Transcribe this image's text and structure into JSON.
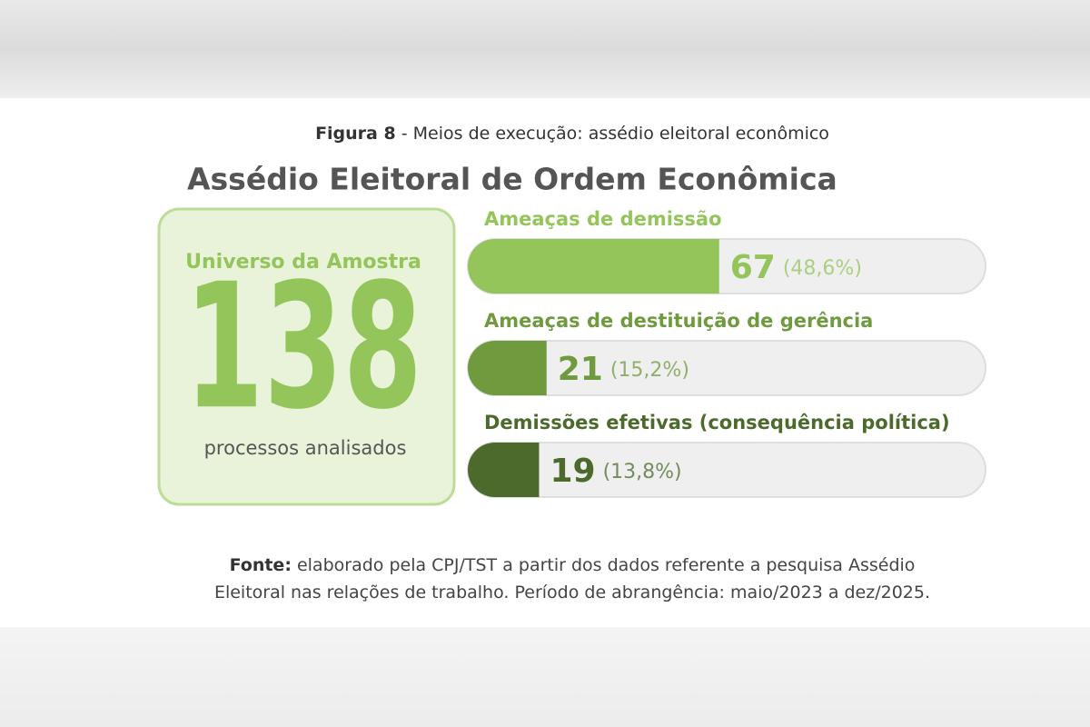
{
  "figure_label": "Figura 8",
  "figure_caption": "- Meios de execução: assédio eleitoral econômico",
  "chart_data": {
    "type": "bar",
    "orientation": "horizontal",
    "title": "Assédio Eleitoral de Ordem Econômica",
    "categories": [
      "Ameaças de demissão",
      "Ameaças de destituição de gerência",
      "Demissões efetivas (consequência política)"
    ],
    "values": [
      67,
      21,
      19
    ],
    "share_labels": [
      "(48,6%)",
      "(15,2%)",
      "(13,8%)"
    ],
    "colors": [
      "#93c55a",
      "#6f9a3e",
      "#4b6a2b"
    ],
    "xlim": [
      0,
      138
    ]
  },
  "sample": {
    "label": "Universo da Amostra",
    "total": 138,
    "caption": "processos analisados"
  },
  "source": {
    "label": "Fonte:",
    "text": "elaborado pela CPJ/TST a partir dos dados referente a pesquisa Assédio Eleitoral nas relações de trabalho. Período de abrangência: maio/2023 a dez/2025."
  }
}
